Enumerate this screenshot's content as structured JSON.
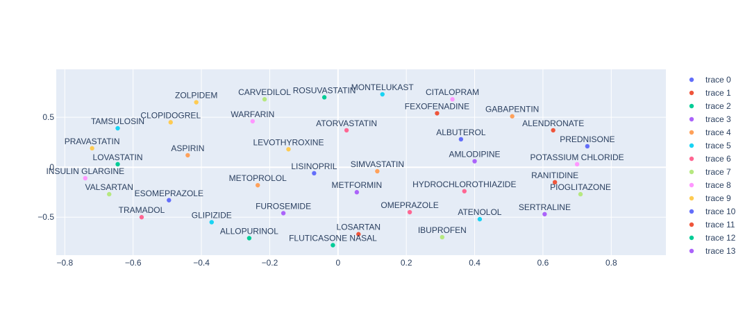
{
  "chart_data": {
    "type": "scatter",
    "xlim": [
      -0.825,
      0.96
    ],
    "ylim": [
      -0.88,
      0.98
    ],
    "x_ticks": [
      -0.8,
      -0.6,
      -0.4,
      -0.2,
      0,
      0.2,
      0.4,
      0.6,
      0.8
    ],
    "x_tick_labels": [
      "−0.8",
      "−0.6",
      "−0.4",
      "−0.2",
      "0",
      "0.2",
      "0.4",
      "0.6",
      "0.8"
    ],
    "y_ticks": [
      -0.5,
      0,
      0.5
    ],
    "y_tick_labels": [
      "−0.5",
      "0",
      "0.5"
    ],
    "grid": true,
    "legend_position": "right",
    "series": [
      {
        "name": "trace 0",
        "color": "#636efa",
        "points": [
          {
            "label": "LISINOPRIL",
            "x": -0.07,
            "y": -0.06
          },
          {
            "label": "ALBUTEROL",
            "x": 0.36,
            "y": 0.28
          },
          {
            "label": "ESOMEPRAZOLE",
            "x": -0.495,
            "y": -0.33
          }
        ]
      },
      {
        "name": "trace 1",
        "color": "#EF553B",
        "points": [
          {
            "label": "FEXOFENADINE",
            "x": 0.29,
            "y": 0.54
          },
          {
            "label": "ALENDRONATE",
            "x": 0.63,
            "y": 0.37
          },
          {
            "label": "LOSARTAN",
            "x": 0.06,
            "y": -0.67
          }
        ]
      },
      {
        "name": "trace 2",
        "color": "#00cc96",
        "points": [
          {
            "label": "ROSUVASTATIN",
            "x": -0.04,
            "y": 0.7
          },
          {
            "label": "LOVASTATIN",
            "x": -0.645,
            "y": 0.03
          },
          {
            "label": "ALLOPURINOL",
            "x": -0.26,
            "y": -0.71
          }
        ]
      },
      {
        "name": "trace 3",
        "color": "#ab63fa",
        "points": [
          {
            "label": "AMLODIPINE",
            "x": 0.4,
            "y": 0.06
          },
          {
            "label": "METFORMIN",
            "x": 0.055,
            "y": -0.25
          }
        ]
      },
      {
        "name": "trace 4",
        "color": "#FFA15A",
        "points": [
          {
            "label": "GABAPENTIN",
            "x": 0.51,
            "y": 0.51
          },
          {
            "label": "ASPIRIN",
            "x": -0.44,
            "y": 0.12
          },
          {
            "label": "SIMVASTATIN",
            "x": 0.115,
            "y": -0.04
          },
          {
            "label": "METOPROLOL",
            "x": -0.235,
            "y": -0.18
          }
        ]
      },
      {
        "name": "trace 5",
        "color": "#19d3f3",
        "points": [
          {
            "label": "MONTELUKAST",
            "x": 0.13,
            "y": 0.73
          },
          {
            "label": "TAMSULOSIN",
            "x": -0.645,
            "y": 0.39
          },
          {
            "label": "GLIPIZIDE",
            "x": -0.37,
            "y": -0.55
          },
          {
            "label": "ATENOLOL",
            "x": 0.415,
            "y": -0.52
          }
        ]
      },
      {
        "name": "trace 6",
        "color": "#FF6692",
        "points": [
          {
            "label": "ATORVASTATIN",
            "x": 0.025,
            "y": 0.37
          },
          {
            "label": "HYDROCHLOROTHIAZIDE",
            "x": 0.37,
            "y": -0.24
          },
          {
            "label": "OMEPRAZOLE",
            "x": 0.21,
            "y": -0.45
          },
          {
            "label": "TRAMADOL",
            "x": -0.575,
            "y": -0.5
          }
        ]
      },
      {
        "name": "trace 7",
        "color": "#B6E880",
        "points": [
          {
            "label": "CARVEDILOL",
            "x": -0.215,
            "y": 0.68
          },
          {
            "label": "VALSARTAN",
            "x": -0.67,
            "y": -0.27
          },
          {
            "label": "PIOGLITAZONE",
            "x": 0.71,
            "y": -0.27
          },
          {
            "label": "IBUPROFEN",
            "x": 0.305,
            "y": -0.7
          }
        ]
      },
      {
        "name": "trace 8",
        "color": "#FF97FF",
        "points": [
          {
            "label": "CITALOPRAM",
            "x": 0.335,
            "y": 0.68
          },
          {
            "label": "WARFARIN",
            "x": -0.25,
            "y": 0.46
          },
          {
            "label": "POTASSIUM CHLORIDE",
            "x": 0.7,
            "y": 0.03
          },
          {
            "label": "INSULIN GLARGINE",
            "x": -0.74,
            "y": -0.11
          }
        ]
      },
      {
        "name": "trace 9",
        "color": "#FECB52",
        "points": [
          {
            "label": "ZOLPIDEM",
            "x": -0.415,
            "y": 0.65
          },
          {
            "label": "CLOPIDOGREL",
            "x": -0.49,
            "y": 0.45
          },
          {
            "label": "PRAVASTATIN",
            "x": -0.72,
            "y": 0.19
          },
          {
            "label": "LEVOTHYROXINE",
            "x": -0.145,
            "y": 0.18
          }
        ]
      },
      {
        "name": "trace 10",
        "color": "#636efa",
        "points": [
          {
            "label": "PREDNISONE",
            "x": 0.73,
            "y": 0.21
          }
        ]
      },
      {
        "name": "trace 11",
        "color": "#EF553B",
        "points": [
          {
            "label": "RANITIDINE",
            "x": 0.635,
            "y": -0.15
          }
        ]
      },
      {
        "name": "trace 12",
        "color": "#00cc96",
        "points": [
          {
            "label": "FLUTICASONE NASAL",
            "x": -0.015,
            "y": -0.78
          }
        ]
      },
      {
        "name": "trace 13",
        "color": "#ab63fa",
        "points": [
          {
            "label": "SERTRALINE",
            "x": 0.605,
            "y": -0.47
          },
          {
            "label": "FUROSEMIDE",
            "x": -0.16,
            "y": -0.46
          }
        ]
      }
    ]
  }
}
